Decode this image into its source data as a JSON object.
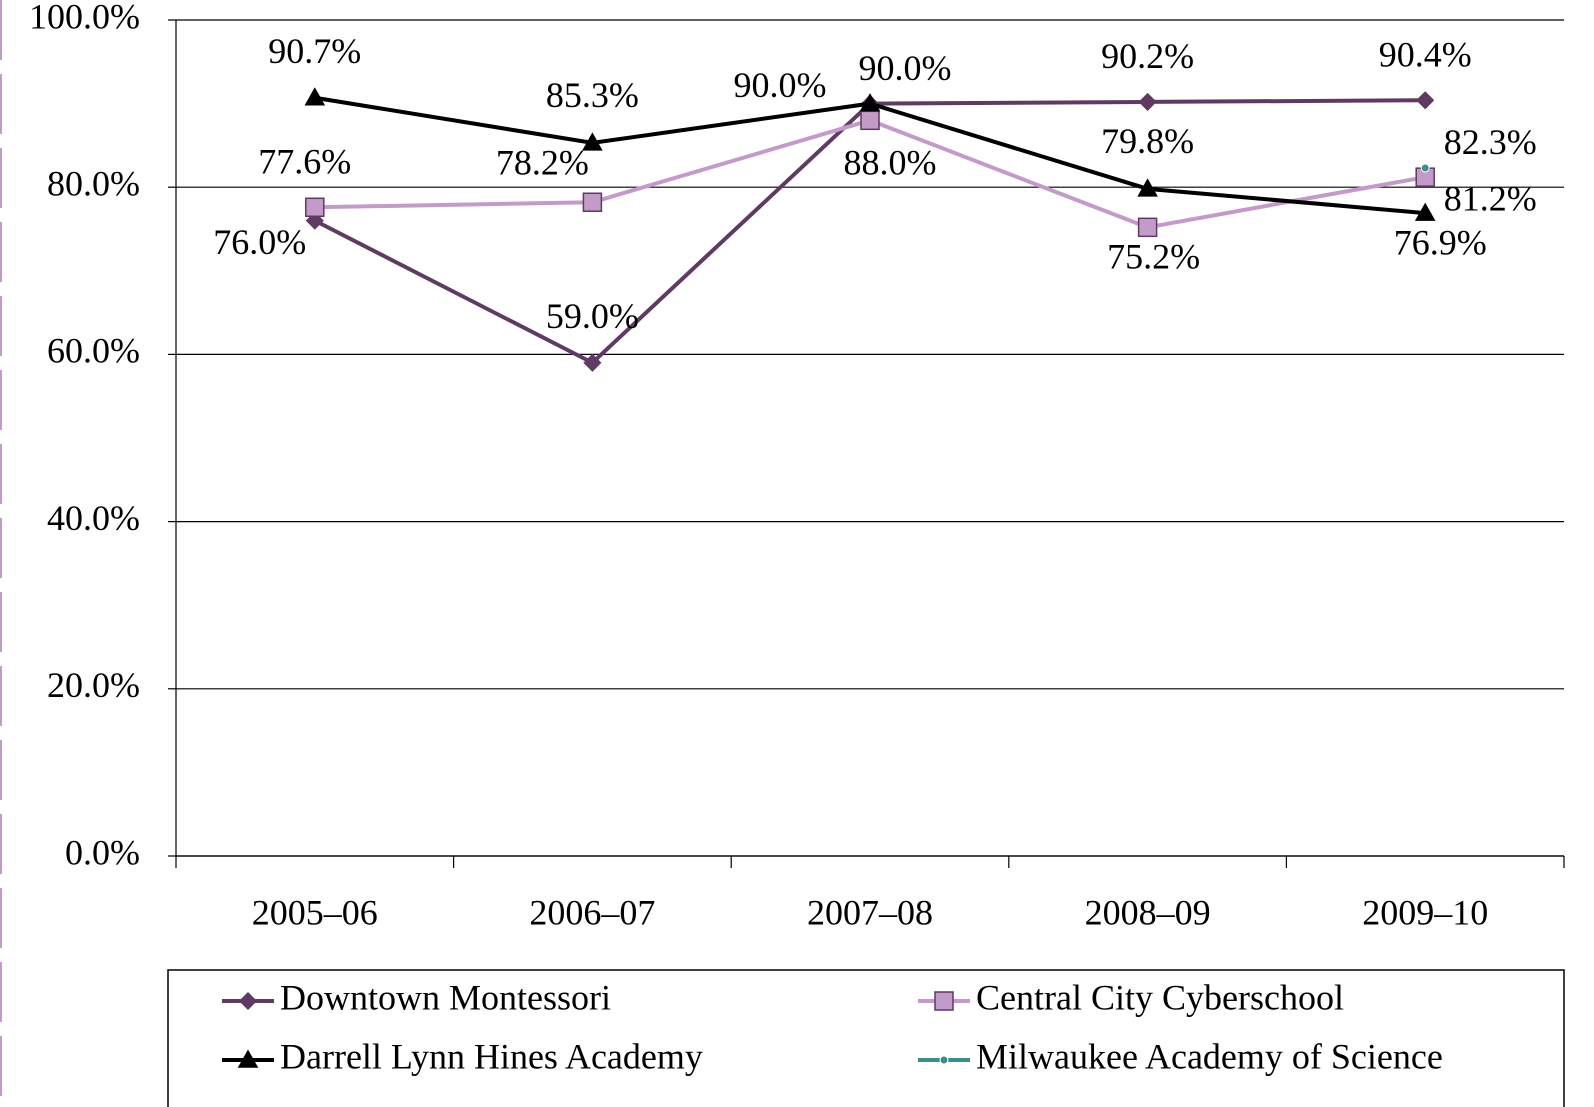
{
  "chart_data": {
    "type": "line",
    "categories": [
      "2005–06",
      "2006–07",
      "2007–08",
      "2008–09",
      "2009–10"
    ],
    "series": [
      {
        "name": "Downtown Montessori",
        "color": "#5f3a62",
        "marker": "diamond",
        "values": [
          76.0,
          59.0,
          90.0,
          90.2,
          90.4
        ],
        "value_labels": [
          "76.0%",
          "59.0%",
          "90.0%",
          "90.2%",
          "90.4%"
        ]
      },
      {
        "name": "Central City Cyberschool",
        "color": "#c39bc8",
        "marker": "square",
        "values": [
          77.6,
          78.2,
          88.0,
          75.2,
          81.2
        ],
        "value_labels": [
          "77.6%",
          "78.2%",
          "88.0%",
          "75.2%",
          "81.2%"
        ]
      },
      {
        "name": "Darrell Lynn Hines Academy",
        "color": "#000000",
        "marker": "triangle",
        "values": [
          90.7,
          85.3,
          90.0,
          79.8,
          76.9
        ],
        "value_labels": [
          "90.7%",
          "85.3%",
          "90.0%",
          "79.8%",
          "76.9%"
        ]
      },
      {
        "name": "Milwaukee Academy of Science",
        "color": "#3a8f8a",
        "marker": "circle",
        "values": [
          null,
          null,
          null,
          null,
          82.3
        ],
        "value_labels": [
          null,
          null,
          null,
          null,
          "82.3%"
        ]
      }
    ],
    "ylim": [
      0,
      100
    ],
    "yticks": [
      {
        "value": 0,
        "label": "0.0%"
      },
      {
        "value": 20,
        "label": "20.0%"
      },
      {
        "value": 40,
        "label": "40.0%"
      },
      {
        "value": 60,
        "label": "60.0%"
      },
      {
        "value": 80,
        "label": "80.0%"
      },
      {
        "value": 100,
        "label": "100.0%"
      }
    ],
    "grid": true,
    "legend": "bottom"
  }
}
